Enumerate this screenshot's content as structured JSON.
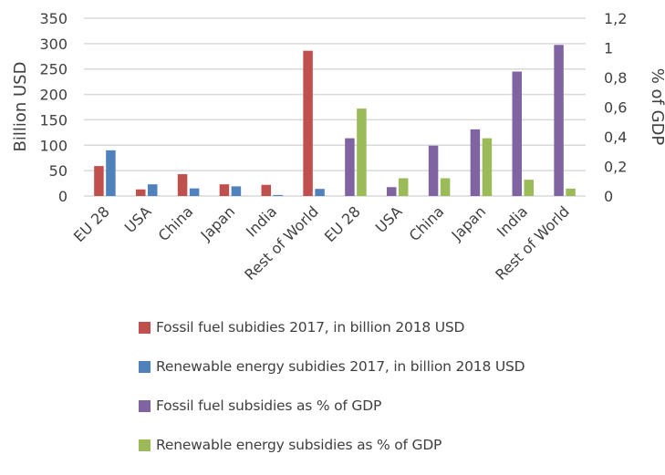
{
  "chart_data": {
    "type": "bar",
    "title": "",
    "ylabel": "Billion USD",
    "y2label": "% of GDP",
    "ylim": [
      0,
      350
    ],
    "y2lim": [
      0,
      1.2
    ],
    "yticks": [
      "0",
      "50",
      "100",
      "150",
      "200",
      "250",
      "300",
      "350"
    ],
    "y2ticks": [
      "0",
      "0,2",
      "0,4",
      "0,6",
      "0,8",
      "1",
      "1,2"
    ],
    "grid": true,
    "legend_position": "bottom",
    "groups": [
      {
        "name": "billion_usd",
        "axis": "left",
        "categories": [
          "EU 28",
          "USA",
          "China",
          "Japan",
          "India",
          "Rest of World"
        ],
        "series": [
          {
            "name": "Fossil fuel subidies 2017, in billion 2018 USD",
            "color": "#C0504D",
            "values": [
              59,
              13,
              43,
              23,
              22,
              286
            ]
          },
          {
            "name": "Renewable energy subidies 2017, in billion 2018 USD",
            "color": "#4F81BD",
            "values": [
              90,
              23,
              15,
              19,
              2,
              14
            ]
          }
        ]
      },
      {
        "name": "pct_gdp",
        "axis": "right",
        "categories": [
          "EU 28",
          "USA",
          "China",
          "Japan",
          "India",
          "Rest of World"
        ],
        "series": [
          {
            "name": "Fossil fuel subsidies as % of GDP",
            "color": "#8064A2",
            "values": [
              0.39,
              0.06,
              0.34,
              0.45,
              0.84,
              1.02
            ]
          },
          {
            "name": "Renewable energy subsidies as % of GDP",
            "color": "#9BBB59",
            "values": [
              0.59,
              0.12,
              0.12,
              0.39,
              0.11,
              0.05
            ]
          }
        ]
      }
    ]
  }
}
